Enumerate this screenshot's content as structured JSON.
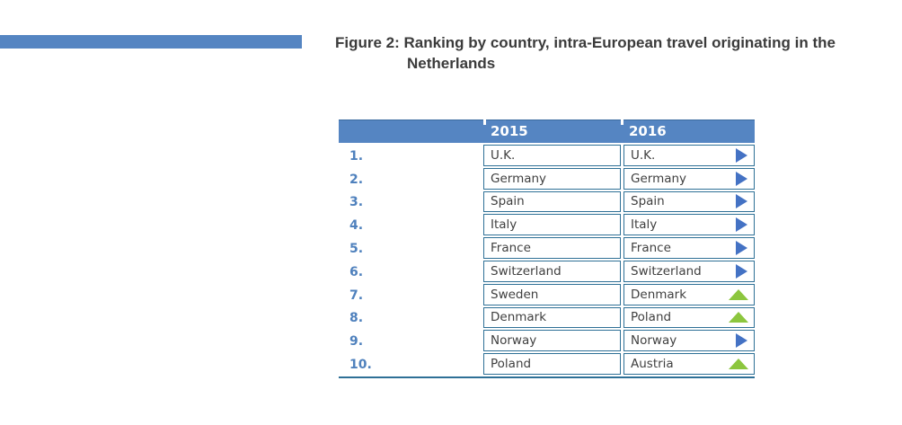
{
  "figure": {
    "title_line1": "Figure 2: Ranking by country, intra-European travel originating in the",
    "title_line2": "Netherlands"
  },
  "table": {
    "header": {
      "rank_col": "",
      "col2015": "2015",
      "col2016": "2016"
    },
    "rows": [
      {
        "rank": "1.",
        "y2015": "U.K.",
        "y2016": "U.K.",
        "trend": "same"
      },
      {
        "rank": "2.",
        "y2015": "Germany",
        "y2016": "Germany",
        "trend": "same"
      },
      {
        "rank": "3.",
        "y2015": "Spain",
        "y2016": "Spain",
        "trend": "same"
      },
      {
        "rank": "4.",
        "y2015": "Italy",
        "y2016": "Italy",
        "trend": "same"
      },
      {
        "rank": "5.",
        "y2015": "France",
        "y2016": "France",
        "trend": "same"
      },
      {
        "rank": "6.",
        "y2015": "Switzerland",
        "y2016": "Switzerland",
        "trend": "same"
      },
      {
        "rank": "7.",
        "y2015": "Sweden",
        "y2016": "Denmark",
        "trend": "up"
      },
      {
        "rank": "8.",
        "y2015": "Denmark",
        "y2016": "Poland",
        "trend": "up"
      },
      {
        "rank": "9.",
        "y2015": "Norway",
        "y2016": "Norway",
        "trend": "same"
      },
      {
        "rank": "10.",
        "y2015": "Poland",
        "y2016": "Austria",
        "trend": "up"
      }
    ],
    "trend_legend": {
      "same": "right-arrow",
      "up": "up-triangle"
    }
  },
  "colors": {
    "accent_blue": "#5585C2",
    "cell_border": "#2E7096",
    "rank_text": "#4F81BD",
    "arrow_blue": "#4472C4",
    "arrow_green": "#8CC63E",
    "title_text": "#3B3B3B",
    "cell_text": "#3F3F3F",
    "header_text": "#FFFFFF"
  }
}
